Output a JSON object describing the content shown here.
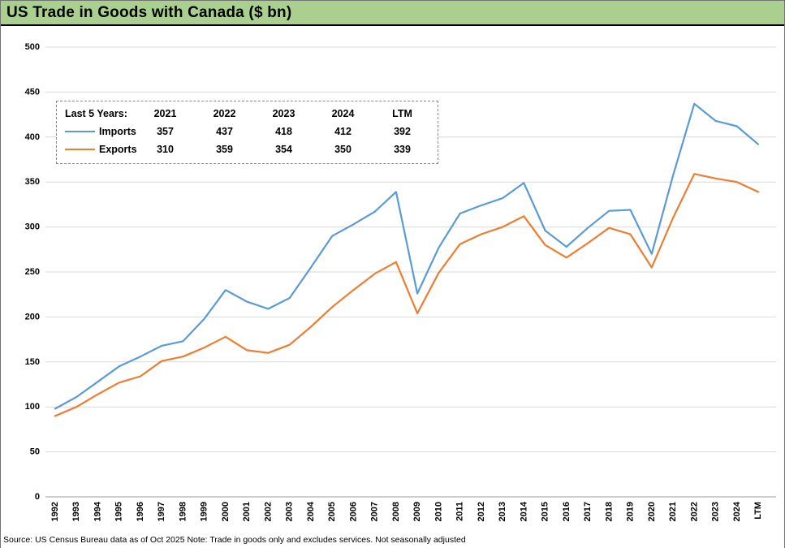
{
  "title": "US Trade in Goods with Canada ($ bn)",
  "source_note": "Source: US Census Bureau data as of Oct 2025 Note: Trade in goods only and excludes services. Not seasonally adjusted",
  "colors": {
    "banner_green": "#A9D08E",
    "imports_blue": "#5B9BD5",
    "exports_orange": "#ED7D31",
    "gridline": "#D9D9D9",
    "axis_line": "#9E9E9E"
  },
  "legend": {
    "header": [
      "Last 5 Years:",
      "2021",
      "2022",
      "2023",
      "2024",
      "LTM"
    ],
    "rows": [
      {
        "name": "Imports",
        "color": "#5B9BD5",
        "values": [
          "357",
          "437",
          "418",
          "412",
          "392"
        ]
      },
      {
        "name": "Exports",
        "color": "#ED7D31",
        "values": [
          "310",
          "359",
          "354",
          "350",
          "339"
        ]
      }
    ]
  },
  "chart_data": {
    "type": "line",
    "title": "US Trade in Goods with Canada ($ bn)",
    "xlabel": "",
    "ylabel": "",
    "ylim": [
      0,
      500
    ],
    "ytick_step": 50,
    "grid": "horizontal",
    "legend_position": "top-left-inset",
    "categories": [
      "1992",
      "1993",
      "1994",
      "1995",
      "1996",
      "1997",
      "1998",
      "1999",
      "2000",
      "2001",
      "2002",
      "2003",
      "2004",
      "2005",
      "2006",
      "2007",
      "2008",
      "2009",
      "2010",
      "2011",
      "2012",
      "2013",
      "2014",
      "2015",
      "2016",
      "2017",
      "2018",
      "2019",
      "2020",
      "2021",
      "2022",
      "2023",
      "2024",
      "LTM"
    ],
    "series": [
      {
        "name": "Imports",
        "color": "#5B9BD5",
        "values": [
          98,
          111,
          128,
          145,
          156,
          168,
          173,
          198,
          230,
          217,
          209,
          221,
          255,
          290,
          303,
          317,
          339,
          226,
          277,
          315,
          324,
          332,
          349,
          296,
          278,
          299,
          318,
          319,
          270,
          357,
          437,
          418,
          412,
          392
        ]
      },
      {
        "name": "Exports",
        "color": "#ED7D31",
        "values": [
          90,
          100,
          114,
          127,
          134,
          151,
          156,
          166,
          178,
          163,
          160,
          169,
          189,
          211,
          230,
          248,
          261,
          204,
          249,
          281,
          292,
          300,
          312,
          280,
          266,
          282,
          299,
          292,
          255,
          310,
          359,
          354,
          350,
          339
        ]
      }
    ]
  }
}
